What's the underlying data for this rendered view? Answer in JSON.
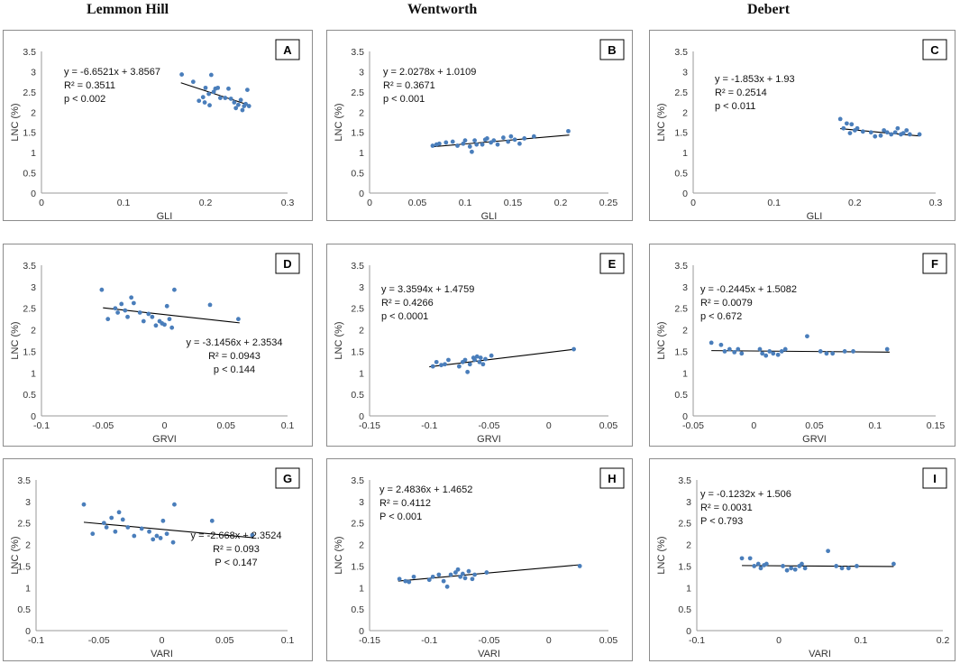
{
  "columns": [
    "Lemmon Hill",
    "Wentworth",
    "Debert"
  ],
  "chart_data": [
    {
      "type": "scatter",
      "panel": "A",
      "site": "Lemmon Hill",
      "xlabel": "GLI",
      "ylabel": "LNC (%)",
      "xlim": [
        0,
        0.3
      ],
      "xticks": [
        "0",
        "0.1",
        "0.2",
        "0.3"
      ],
      "ylim": [
        0,
        3.5
      ],
      "yticks": [
        "0",
        "0.5",
        "1",
        "1.5",
        "2",
        "2.5",
        "3",
        "3.5"
      ],
      "trend": {
        "slope": -6.6521,
        "intercept": 3.8567,
        "x_range": [
          0.17,
          0.255
        ]
      },
      "annotations": [
        "y = -6.6521x + 3.8567",
        "R² = 0.3511",
        "p < 0.002"
      ],
      "points": [
        [
          0.171,
          2.93
        ],
        [
          0.185,
          2.75
        ],
        [
          0.192,
          2.28
        ],
        [
          0.197,
          2.37
        ],
        [
          0.199,
          2.24
        ],
        [
          0.2,
          2.6
        ],
        [
          0.204,
          2.45
        ],
        [
          0.205,
          2.17
        ],
        [
          0.207,
          2.92
        ],
        [
          0.21,
          2.5
        ],
        [
          0.212,
          2.58
        ],
        [
          0.215,
          2.6
        ],
        [
          0.218,
          2.35
        ],
        [
          0.224,
          2.35
        ],
        [
          0.228,
          2.58
        ],
        [
          0.231,
          2.33
        ],
        [
          0.235,
          2.24
        ],
        [
          0.237,
          2.1
        ],
        [
          0.24,
          2.18
        ],
        [
          0.243,
          2.3
        ],
        [
          0.245,
          2.05
        ],
        [
          0.247,
          2.15
        ],
        [
          0.249,
          2.2
        ],
        [
          0.251,
          2.55
        ],
        [
          0.253,
          2.15
        ]
      ]
    },
    {
      "type": "scatter",
      "panel": "B",
      "site": "Wentworth",
      "xlabel": "GLI",
      "ylabel": "LNC (%)",
      "xlim": [
        0,
        0.25
      ],
      "xticks": [
        "0",
        "0.05",
        "0.1",
        "0.15",
        "0.2",
        "0.25"
      ],
      "ylim": [
        0,
        3.5
      ],
      "yticks": [
        "0",
        "0.5",
        "1",
        "1.5",
        "2",
        "2.5",
        "3",
        "3.5"
      ],
      "trend": {
        "slope": 2.0278,
        "intercept": 1.0109,
        "x_range": [
          0.065,
          0.209
        ]
      },
      "annotations": [
        "y = 2.0278x + 1.0109",
        "R² = 0.3671",
        "p < 0.001"
      ],
      "points": [
        [
          0.066,
          1.17
        ],
        [
          0.07,
          1.2
        ],
        [
          0.073,
          1.22
        ],
        [
          0.08,
          1.25
        ],
        [
          0.087,
          1.27
        ],
        [
          0.092,
          1.17
        ],
        [
          0.098,
          1.22
        ],
        [
          0.1,
          1.3
        ],
        [
          0.105,
          1.15
        ],
        [
          0.107,
          1.02
        ],
        [
          0.11,
          1.3
        ],
        [
          0.112,
          1.2
        ],
        [
          0.118,
          1.2
        ],
        [
          0.121,
          1.32
        ],
        [
          0.123,
          1.35
        ],
        [
          0.127,
          1.25
        ],
        [
          0.13,
          1.3
        ],
        [
          0.134,
          1.2
        ],
        [
          0.14,
          1.37
        ],
        [
          0.145,
          1.27
        ],
        [
          0.148,
          1.4
        ],
        [
          0.152,
          1.32
        ],
        [
          0.157,
          1.22
        ],
        [
          0.162,
          1.35
        ],
        [
          0.172,
          1.4
        ],
        [
          0.208,
          1.53
        ]
      ]
    },
    {
      "type": "scatter",
      "panel": "C",
      "site": "Debert",
      "xlabel": "GLI",
      "ylabel": "LNC (%)",
      "xlim": [
        0,
        0.3
      ],
      "xticks": [
        "0",
        "0.1",
        "0.2",
        "0.3"
      ],
      "ylim": [
        0,
        3.5
      ],
      "yticks": [
        "0",
        "0.5",
        "1",
        "1.5",
        "2",
        "2.5",
        "3",
        "3.5"
      ],
      "trend": {
        "slope": -1.853,
        "intercept": 1.93,
        "x_range": [
          0.182,
          0.28
        ]
      },
      "annotations": [
        "y = -1.853x + 1.93",
        "R² = 0.2514",
        "p < 0.011"
      ],
      "points": [
        [
          0.182,
          1.83
        ],
        [
          0.186,
          1.6
        ],
        [
          0.19,
          1.72
        ],
        [
          0.194,
          1.48
        ],
        [
          0.196,
          1.7
        ],
        [
          0.2,
          1.55
        ],
        [
          0.203,
          1.6
        ],
        [
          0.21,
          1.52
        ],
        [
          0.22,
          1.5
        ],
        [
          0.225,
          1.4
        ],
        [
          0.232,
          1.42
        ],
        [
          0.236,
          1.55
        ],
        [
          0.24,
          1.5
        ],
        [
          0.245,
          1.45
        ],
        [
          0.25,
          1.5
        ],
        [
          0.253,
          1.6
        ],
        [
          0.257,
          1.45
        ],
        [
          0.26,
          1.48
        ],
        [
          0.264,
          1.55
        ],
        [
          0.268,
          1.45
        ],
        [
          0.28,
          1.45
        ]
      ]
    },
    {
      "type": "scatter",
      "panel": "D",
      "site": "Lemmon Hill",
      "xlabel": "GRVI",
      "ylabel": "LNC (%)",
      "xlim": [
        -0.1,
        0.1
      ],
      "xticks": [
        "-0.1",
        "-0.05",
        "0",
        "0.05",
        "0.1"
      ],
      "ylim": [
        0,
        3.5
      ],
      "yticks": [
        "0",
        "0.5",
        "1",
        "1.5",
        "2",
        "2.5",
        "3",
        "3.5"
      ],
      "trend": {
        "slope": -3.1456,
        "intercept": 2.3534,
        "x_range": [
          -0.05,
          0.061
        ]
      },
      "annotations": [
        "y = -3.1456x + 2.3534",
        "R² = 0.0943",
        "p < 0.144"
      ],
      "points": [
        [
          -0.051,
          2.93
        ],
        [
          -0.046,
          2.25
        ],
        [
          -0.04,
          2.5
        ],
        [
          -0.038,
          2.4
        ],
        [
          -0.035,
          2.6
        ],
        [
          -0.032,
          2.45
        ],
        [
          -0.03,
          2.3
        ],
        [
          -0.027,
          2.75
        ],
        [
          -0.025,
          2.62
        ],
        [
          -0.02,
          2.4
        ],
        [
          -0.017,
          2.2
        ],
        [
          -0.013,
          2.37
        ],
        [
          -0.01,
          2.3
        ],
        [
          -0.007,
          2.1
        ],
        [
          -0.004,
          2.2
        ],
        [
          -0.002,
          2.15
        ],
        [
          0,
          2.12
        ],
        [
          0.002,
          2.55
        ],
        [
          0.004,
          2.25
        ],
        [
          0.006,
          2.05
        ],
        [
          0.008,
          2.93
        ],
        [
          0.037,
          2.58
        ],
        [
          0.06,
          2.25
        ]
      ]
    },
    {
      "type": "scatter",
      "panel": "E",
      "site": "Wentworth",
      "xlabel": "GRVI",
      "ylabel": "LNC (%)",
      "xlim": [
        -0.15,
        0.05
      ],
      "xticks": [
        "-0.15",
        "-0.1",
        "-0.05",
        "0",
        "0.05"
      ],
      "ylim": [
        0,
        3.5
      ],
      "yticks": [
        "0",
        "0.5",
        "1",
        "1.5",
        "2",
        "2.5",
        "3",
        "3.5"
      ],
      "trend": {
        "slope": 3.3594,
        "intercept": 1.4759,
        "x_range": [
          -0.1,
          0.021
        ]
      },
      "annotations": [
        "y = 3.3594x + 1.4759",
        "R² = 0.4266",
        "p < 0.0001"
      ],
      "points": [
        [
          -0.097,
          1.15
        ],
        [
          -0.094,
          1.25
        ],
        [
          -0.09,
          1.18
        ],
        [
          -0.087,
          1.2
        ],
        [
          -0.084,
          1.3
        ],
        [
          -0.075,
          1.15
        ],
        [
          -0.072,
          1.25
        ],
        [
          -0.07,
          1.3
        ],
        [
          -0.068,
          1.02
        ],
        [
          -0.066,
          1.2
        ],
        [
          -0.063,
          1.35
        ],
        [
          -0.062,
          1.3
        ],
        [
          -0.06,
          1.38
        ],
        [
          -0.058,
          1.25
        ],
        [
          -0.057,
          1.35
        ],
        [
          -0.055,
          1.2
        ],
        [
          -0.053,
          1.32
        ],
        [
          -0.048,
          1.4
        ],
        [
          0.021,
          1.55
        ]
      ]
    },
    {
      "type": "scatter",
      "panel": "F",
      "site": "Debert",
      "xlabel": "GRVI",
      "ylabel": "LNC (%)",
      "xlim": [
        -0.05,
        0.15
      ],
      "xticks": [
        "-0.05",
        "0",
        "0.05",
        "0.1",
        "0.15"
      ],
      "ylim": [
        0,
        3.5
      ],
      "yticks": [
        "0",
        "0.5",
        "1",
        "1.5",
        "2",
        "2.5",
        "3",
        "3.5"
      ],
      "trend": {
        "slope": -0.2445,
        "intercept": 1.5082,
        "x_range": [
          -0.035,
          0.112
        ]
      },
      "annotations": [
        "y = -0.2445x + 1.5082",
        "R² = 0.0079",
        "p < 0.672"
      ],
      "points": [
        [
          -0.035,
          1.7
        ],
        [
          -0.027,
          1.65
        ],
        [
          -0.024,
          1.5
        ],
        [
          -0.02,
          1.55
        ],
        [
          -0.016,
          1.48
        ],
        [
          -0.013,
          1.55
        ],
        [
          -0.01,
          1.45
        ],
        [
          0.005,
          1.55
        ],
        [
          0.007,
          1.45
        ],
        [
          0.01,
          1.4
        ],
        [
          0.013,
          1.5
        ],
        [
          0.016,
          1.45
        ],
        [
          0.02,
          1.42
        ],
        [
          0.023,
          1.5
        ],
        [
          0.026,
          1.55
        ],
        [
          0.044,
          1.85
        ],
        [
          0.055,
          1.5
        ],
        [
          0.06,
          1.45
        ],
        [
          0.065,
          1.45
        ],
        [
          0.075,
          1.5
        ],
        [
          0.082,
          1.5
        ],
        [
          0.11,
          1.55
        ]
      ]
    },
    {
      "type": "scatter",
      "panel": "G",
      "site": "Lemmon Hill",
      "xlabel": "VARI",
      "ylabel": "LNC (%)",
      "xlim": [
        -0.1,
        0.1
      ],
      "xticks": [
        "-0.1",
        "-0.05",
        "0",
        "0.05",
        "0.1"
      ],
      "ylim": [
        0,
        3.5
      ],
      "yticks": [
        "0",
        "0.5",
        "1",
        "1.5",
        "2",
        "2.5",
        "3",
        "3.5"
      ],
      "trend": {
        "slope": -2.668,
        "intercept": 2.3524,
        "x_range": [
          -0.062,
          0.073
        ]
      },
      "annotations": [
        "y = -2.668x + 2.3524",
        "R² = 0.093",
        "P < 0.147"
      ],
      "points": [
        [
          -0.062,
          2.93
        ],
        [
          -0.055,
          2.25
        ],
        [
          -0.046,
          2.5
        ],
        [
          -0.044,
          2.4
        ],
        [
          -0.04,
          2.62
        ],
        [
          -0.037,
          2.3
        ],
        [
          -0.034,
          2.75
        ],
        [
          -0.031,
          2.58
        ],
        [
          -0.027,
          2.4
        ],
        [
          -0.022,
          2.2
        ],
        [
          -0.016,
          2.37
        ],
        [
          -0.01,
          2.3
        ],
        [
          -0.007,
          2.12
        ],
        [
          -0.004,
          2.2
        ],
        [
          -0.001,
          2.15
        ],
        [
          0.001,
          2.55
        ],
        [
          0.004,
          2.25
        ],
        [
          0.009,
          2.05
        ],
        [
          0.01,
          2.93
        ],
        [
          0.04,
          2.55
        ],
        [
          0.072,
          2.22
        ]
      ]
    },
    {
      "type": "scatter",
      "panel": "H",
      "site": "Wentworth",
      "xlabel": "VARI",
      "ylabel": "LNC (%)",
      "xlim": [
        -0.15,
        0.05
      ],
      "xticks": [
        "-0.15",
        "-0.1",
        "-0.05",
        "0",
        "0.05"
      ],
      "ylim": [
        0,
        3.5
      ],
      "yticks": [
        "0",
        "0.5",
        "1",
        "1.5",
        "2",
        "2.5",
        "3",
        "3.5"
      ],
      "trend": {
        "slope": 2.4836,
        "intercept": 1.4652,
        "x_range": [
          -0.126,
          0.026
        ]
      },
      "annotations": [
        "y = 2.4836x + 1.4652",
        "R² = 0.4112",
        "P < 0.001"
      ],
      "points": [
        [
          -0.125,
          1.2
        ],
        [
          -0.12,
          1.15
        ],
        [
          -0.117,
          1.13
        ],
        [
          -0.113,
          1.25
        ],
        [
          -0.1,
          1.18
        ],
        [
          -0.097,
          1.25
        ],
        [
          -0.092,
          1.3
        ],
        [
          -0.088,
          1.15
        ],
        [
          -0.085,
          1.02
        ],
        [
          -0.082,
          1.3
        ],
        [
          -0.078,
          1.35
        ],
        [
          -0.076,
          1.42
        ],
        [
          -0.074,
          1.25
        ],
        [
          -0.072,
          1.32
        ],
        [
          -0.07,
          1.22
        ],
        [
          -0.067,
          1.38
        ],
        [
          -0.064,
          1.2
        ],
        [
          -0.062,
          1.3
        ],
        [
          -0.052,
          1.35
        ],
        [
          0.026,
          1.5
        ]
      ]
    },
    {
      "type": "scatter",
      "panel": "I",
      "site": "Debert",
      "xlabel": "VARI",
      "ylabel": "LNC (%)",
      "xlim": [
        -0.1,
        0.2
      ],
      "xticks": [
        "-0.1",
        "0",
        "0.1",
        "0.2"
      ],
      "ylim": [
        0,
        3.5
      ],
      "yticks": [
        "0",
        "0.5",
        "1",
        "1.5",
        "2",
        "2.5",
        "3",
        "3.5"
      ],
      "trend": {
        "slope": -0.1232,
        "intercept": 1.506,
        "x_range": [
          -0.045,
          0.14
        ]
      },
      "annotations": [
        "y = -0.1232x + 1.506",
        "R² = 0.0031",
        "P < 0.793"
      ],
      "points": [
        [
          -0.045,
          1.68
        ],
        [
          -0.035,
          1.68
        ],
        [
          -0.03,
          1.5
        ],
        [
          -0.025,
          1.55
        ],
        [
          -0.022,
          1.45
        ],
        [
          -0.018,
          1.52
        ],
        [
          -0.015,
          1.55
        ],
        [
          0.005,
          1.5
        ],
        [
          0.01,
          1.4
        ],
        [
          0.015,
          1.45
        ],
        [
          0.02,
          1.42
        ],
        [
          0.025,
          1.5
        ],
        [
          0.028,
          1.55
        ],
        [
          0.032,
          1.45
        ],
        [
          0.06,
          1.85
        ],
        [
          0.07,
          1.5
        ],
        [
          0.077,
          1.45
        ],
        [
          0.085,
          1.45
        ],
        [
          0.095,
          1.5
        ],
        [
          0.14,
          1.55
        ]
      ]
    }
  ]
}
